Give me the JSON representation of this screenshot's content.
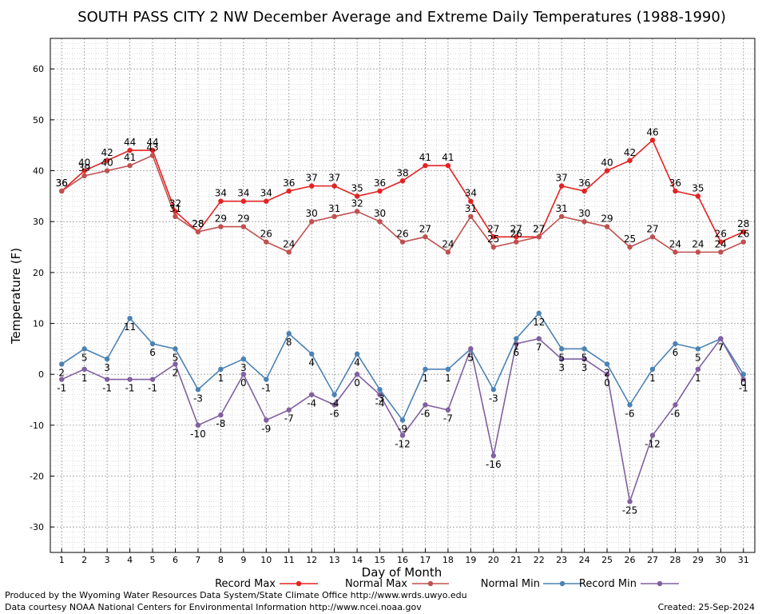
{
  "chart_data": {
    "type": "line",
    "title": "SOUTH PASS CITY 2 NW December Average and Extreme Daily Temperatures (1988-1990)",
    "xlabel": "Day of Month",
    "ylabel": "Temperature (F)",
    "x": [
      1,
      2,
      3,
      4,
      5,
      6,
      7,
      8,
      9,
      10,
      11,
      12,
      13,
      14,
      15,
      16,
      17,
      18,
      19,
      20,
      21,
      22,
      23,
      24,
      25,
      26,
      27,
      28,
      29,
      30,
      31
    ],
    "xlim": [
      0.5,
      31.5
    ],
    "ylim": [
      -35,
      66
    ],
    "yticks": [
      -30,
      -20,
      -10,
      0,
      10,
      20,
      30,
      40,
      50,
      60
    ],
    "grid": true,
    "legend_position": "bottom",
    "series": [
      {
        "name": "Record Max",
        "color": "#e32222",
        "values": [
          36,
          40,
          42,
          44,
          44,
          32,
          28,
          34,
          34,
          34,
          36,
          37,
          37,
          35,
          36,
          38,
          41,
          41,
          34,
          27,
          27,
          27,
          37,
          36,
          40,
          42,
          46,
          36,
          35,
          26,
          28
        ]
      },
      {
        "name": "Normal Max",
        "color": "#c05050",
        "values": [
          36,
          39,
          40,
          41,
          43,
          31,
          28,
          29,
          29,
          26,
          24,
          30,
          31,
          32,
          30,
          26,
          27,
          24,
          31,
          25,
          26,
          27,
          31,
          30,
          29,
          25,
          27,
          24,
          24,
          24,
          26
        ]
      },
      {
        "name": "Normal Min",
        "color": "#4a82b4",
        "values": [
          2,
          5,
          3,
          11,
          6,
          5,
          -3,
          1,
          3,
          -1,
          8,
          4,
          -4,
          4,
          -3,
          -9,
          1,
          1,
          5,
          -3,
          7,
          12,
          5,
          5,
          2,
          -6,
          1,
          6,
          5,
          7,
          0
        ]
      },
      {
        "name": "Record Min",
        "color": "#8060a0",
        "values": [
          -1,
          1,
          -1,
          -1,
          -1,
          2,
          -10,
          -8,
          0,
          -9,
          -7,
          -4,
          -6,
          0,
          -4,
          -12,
          -6,
          -7,
          5,
          -16,
          6,
          7,
          3,
          3,
          0,
          -25,
          -12,
          -6,
          1,
          7,
          -1
        ]
      }
    ]
  },
  "footer": {
    "line1": "Produced by the Wyoming Water Resources Data System/State Climate Office http://www.wrds.uwyo.edu",
    "line2": "Data courtesy NOAA National Centers for Environmental Information http://www.ncei.noaa.gov",
    "created": "Created:  25-Sep-2024"
  }
}
